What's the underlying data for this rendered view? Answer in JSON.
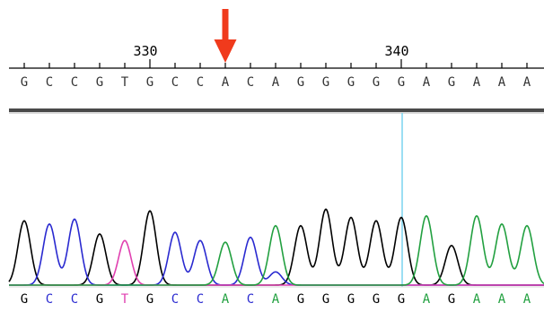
{
  "chart_data": {
    "type": "line",
    "title": "",
    "xlabel": "",
    "ylabel": "",
    "x_ticks": [
      "330",
      "340"
    ],
    "sequence_top": [
      "G",
      "C",
      "C",
      "G",
      "T",
      "G",
      "C",
      "C",
      "A",
      "C",
      "A",
      "G",
      "G",
      "G",
      "G",
      "G",
      "A",
      "G",
      "A",
      "A",
      "A"
    ],
    "sequence_bottom": [
      "G",
      "C",
      "C",
      "G",
      "T",
      "G",
      "C",
      "C",
      "A",
      "C",
      "A",
      "G",
      "G",
      "G",
      "G",
      "G",
      "A",
      "G",
      "A",
      "A",
      "A"
    ],
    "highlight_base_index": 8,
    "cursor_base_index": 15,
    "series": [
      {
        "name": "G",
        "color": "#000000",
        "peaks": [
          [
            0,
            0.78
          ],
          [
            3,
            0.62
          ],
          [
            5,
            0.9
          ],
          [
            11,
            0.72
          ],
          [
            12,
            0.92
          ],
          [
            13,
            0.82
          ],
          [
            14,
            0.78
          ],
          [
            15,
            0.82
          ],
          [
            17,
            0.48
          ]
        ]
      },
      {
        "name": "C",
        "color": "#2a2ad0",
        "peaks": [
          [
            1,
            0.74
          ],
          [
            2,
            0.8
          ],
          [
            6,
            0.64
          ],
          [
            7,
            0.54
          ],
          [
            9,
            0.58
          ],
          [
            10,
            0.16
          ]
        ]
      },
      {
        "name": "T",
        "color": "#e040b0",
        "peaks": [
          [
            4,
            0.54
          ]
        ]
      },
      {
        "name": "A",
        "color": "#22a040",
        "peaks": [
          [
            8,
            0.52
          ],
          [
            10,
            0.72
          ],
          [
            16,
            0.84
          ],
          [
            18,
            0.84
          ],
          [
            19,
            0.74
          ],
          [
            20,
            0.72
          ]
        ]
      }
    ],
    "base_colors": {
      "A": "#22a040",
      "C": "#2a2ad0",
      "G": "#000000",
      "T": "#e040b0"
    },
    "arrow_color": "#f03a1c",
    "cursor_color": "#7ad4ef"
  }
}
